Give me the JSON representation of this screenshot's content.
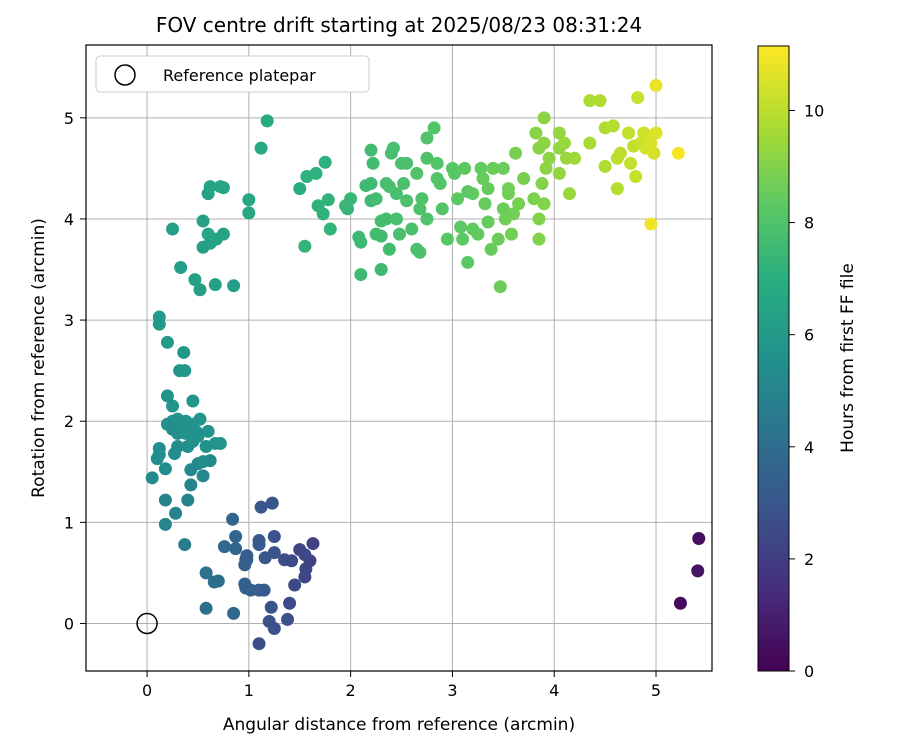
{
  "chart_data": {
    "type": "scatter",
    "title": "FOV centre drift starting at 2025/08/23 08:31:24",
    "xlabel": "Angular distance from reference (arcmin)",
    "ylabel": "Rotation from reference (arcmin)",
    "xlim": [
      -0.6,
      5.55
    ],
    "ylim": [
      -0.47,
      5.72
    ],
    "xticks": [
      0,
      1,
      2,
      3,
      4,
      5
    ],
    "yticks": [
      0,
      1,
      2,
      3,
      4,
      5
    ],
    "grid": true,
    "legend": {
      "placement": "top-left",
      "entries": [
        "Reference platepar"
      ]
    },
    "reference_point": {
      "x": 0,
      "y": 0
    },
    "colorbar": {
      "label": "Hours from first FF file",
      "colormap": "viridis",
      "range": [
        0,
        11.15
      ],
      "ticks": [
        0,
        2,
        4,
        6,
        8,
        10
      ]
    },
    "points": [
      [
        5.24,
        0.2,
        0.3
      ],
      [
        5.42,
        0.84,
        0.4
      ],
      [
        5.41,
        0.52,
        0.6
      ],
      [
        1.2,
        0.02,
        2.7
      ],
      [
        1.22,
        0.16,
        2.8
      ],
      [
        1.1,
        -0.2,
        2.6
      ],
      [
        1.25,
        -0.05,
        2.7
      ],
      [
        1.4,
        0.2,
        2.5
      ],
      [
        1.38,
        0.04,
        2.7
      ],
      [
        1.45,
        0.38,
        2.5
      ],
      [
        1.55,
        0.46,
        2.3
      ],
      [
        1.56,
        0.54,
        2.4
      ],
      [
        1.6,
        0.62,
        2.2
      ],
      [
        1.63,
        0.79,
        2.2
      ],
      [
        1.5,
        0.73,
        2.3
      ],
      [
        1.55,
        0.68,
        2.4
      ],
      [
        1.35,
        0.63,
        2.6
      ],
      [
        1.42,
        0.62,
        2.5
      ],
      [
        1.25,
        0.86,
        2.8
      ],
      [
        1.23,
        1.19,
        2.9
      ],
      [
        1.12,
        1.15,
        3.0
      ],
      [
        1.1,
        0.82,
        3.1
      ],
      [
        1.1,
        0.78,
        3.1
      ],
      [
        1.25,
        0.7,
        2.9
      ],
      [
        1.16,
        0.65,
        3.0
      ],
      [
        0.97,
        0.63,
        3.2
      ],
      [
        0.98,
        0.67,
        3.2
      ],
      [
        0.98,
        0.63,
        3.3
      ],
      [
        0.96,
        0.58,
        3.3
      ],
      [
        1.02,
        0.33,
        3.3
      ],
      [
        1.1,
        0.33,
        3.3
      ],
      [
        1.15,
        0.33,
        3.2
      ],
      [
        0.97,
        0.35,
        3.4
      ],
      [
        0.96,
        0.39,
        3.4
      ],
      [
        0.87,
        0.86,
        3.6
      ],
      [
        0.84,
        1.03,
        3.6
      ],
      [
        0.85,
        0.1,
        3.7
      ],
      [
        0.76,
        0.76,
        3.8
      ],
      [
        0.87,
        0.74,
        3.6
      ],
      [
        0.7,
        0.42,
        4.0
      ],
      [
        0.66,
        0.41,
        4.1
      ],
      [
        0.58,
        0.5,
        4.2
      ],
      [
        0.58,
        0.15,
        4.1
      ],
      [
        0.37,
        0.78,
        4.6
      ],
      [
        0.28,
        1.09,
        4.9
      ],
      [
        0.18,
        0.98,
        5.0
      ],
      [
        0.18,
        1.22,
        5.0
      ],
      [
        0.4,
        1.22,
        4.9
      ],
      [
        0.43,
        1.37,
        5.0
      ],
      [
        0.55,
        1.46,
        5.1
      ],
      [
        0.5,
        1.58,
        5.1
      ],
      [
        0.43,
        1.52,
        5.2
      ],
      [
        0.62,
        1.61,
        5.2
      ],
      [
        0.18,
        1.53,
        5.4
      ],
      [
        0.1,
        1.63,
        5.4
      ],
      [
        0.12,
        1.67,
        5.4
      ],
      [
        0.12,
        1.73,
        5.4
      ],
      [
        0.05,
        1.44,
        5.3
      ],
      [
        0.27,
        1.68,
        5.5
      ],
      [
        0.3,
        1.75,
        5.5
      ],
      [
        0.3,
        1.88,
        5.5
      ],
      [
        0.4,
        1.75,
        5.5
      ],
      [
        0.45,
        1.8,
        5.6
      ],
      [
        0.5,
        1.85,
        5.6
      ],
      [
        0.55,
        1.6,
        5.5
      ],
      [
        0.58,
        1.75,
        5.6
      ],
      [
        0.67,
        1.78,
        5.6
      ],
      [
        0.72,
        1.78,
        5.7
      ],
      [
        0.48,
        1.9,
        5.6
      ],
      [
        0.38,
        1.88,
        5.6
      ],
      [
        0.32,
        1.9,
        5.6
      ],
      [
        0.25,
        1.92,
        5.5
      ],
      [
        0.25,
        2.0,
        5.6
      ],
      [
        0.2,
        1.97,
        5.5
      ],
      [
        0.3,
        2.02,
        5.6
      ],
      [
        0.38,
        2.0,
        5.6
      ],
      [
        0.45,
        1.97,
        5.6
      ],
      [
        0.52,
        2.02,
        5.7
      ],
      [
        0.6,
        1.9,
        5.7
      ],
      [
        0.2,
        2.25,
        5.7
      ],
      [
        0.25,
        2.15,
        5.7
      ],
      [
        0.45,
        2.2,
        5.8
      ],
      [
        0.32,
        2.5,
        5.8
      ],
      [
        0.37,
        2.5,
        5.8
      ],
      [
        0.36,
        2.68,
        5.9
      ],
      [
        0.2,
        2.78,
        6.0
      ],
      [
        0.12,
        2.96,
        6.0
      ],
      [
        0.12,
        3.03,
        6.0
      ],
      [
        0.33,
        3.52,
        6.2
      ],
      [
        0.47,
        3.4,
        6.3
      ],
      [
        0.52,
        3.3,
        6.3
      ],
      [
        0.67,
        3.35,
        6.3
      ],
      [
        0.85,
        3.34,
        6.2
      ],
      [
        0.25,
        3.9,
        6.3
      ],
      [
        0.55,
        3.72,
        6.3
      ],
      [
        0.62,
        3.76,
        6.3
      ],
      [
        0.68,
        3.8,
        6.4
      ],
      [
        0.75,
        3.85,
        6.4
      ],
      [
        0.55,
        3.98,
        6.4
      ],
      [
        0.6,
        3.85,
        6.5
      ],
      [
        0.6,
        4.25,
        6.4
      ],
      [
        0.62,
        4.32,
        6.5
      ],
      [
        0.72,
        4.32,
        6.5
      ],
      [
        0.75,
        4.31,
        6.5
      ],
      [
        1.0,
        4.06,
        6.7
      ],
      [
        1.0,
        4.19,
        6.7
      ],
      [
        1.12,
        4.7,
        6.8
      ],
      [
        1.18,
        4.97,
        6.8
      ],
      [
        1.5,
        4.3,
        7.0
      ],
      [
        1.57,
        4.42,
        7.1
      ],
      [
        1.66,
        4.45,
        7.1
      ],
      [
        1.75,
        4.56,
        7.1
      ],
      [
        1.68,
        4.13,
        7.2
      ],
      [
        1.73,
        4.05,
        7.2
      ],
      [
        1.78,
        4.19,
        7.2
      ],
      [
        1.8,
        3.9,
        7.3
      ],
      [
        1.55,
        3.73,
        7.3
      ],
      [
        1.95,
        4.13,
        7.4
      ],
      [
        1.97,
        4.1,
        7.4
      ],
      [
        2.0,
        4.2,
        7.4
      ],
      [
        2.08,
        3.82,
        7.5
      ],
      [
        2.1,
        3.77,
        7.5
      ],
      [
        2.1,
        3.45,
        7.6
      ],
      [
        2.15,
        4.33,
        7.6
      ],
      [
        2.2,
        4.18,
        7.6
      ],
      [
        2.2,
        4.35,
        7.6
      ],
      [
        2.22,
        4.55,
        7.7
      ],
      [
        2.2,
        4.68,
        7.7
      ],
      [
        2.25,
        4.2,
        7.7
      ],
      [
        2.25,
        3.85,
        7.7
      ],
      [
        2.3,
        3.83,
        7.7
      ],
      [
        2.3,
        3.98,
        7.7
      ],
      [
        2.35,
        4.0,
        7.7
      ],
      [
        2.35,
        4.35,
        7.8
      ],
      [
        2.38,
        4.32,
        7.8
      ],
      [
        2.4,
        4.65,
        7.8
      ],
      [
        2.42,
        4.7,
        7.8
      ],
      [
        2.45,
        4.25,
        7.8
      ],
      [
        2.45,
        4.0,
        7.8
      ],
      [
        2.38,
        3.7,
        7.7
      ],
      [
        2.48,
        3.85,
        7.8
      ],
      [
        2.3,
        3.5,
        7.6
      ],
      [
        2.5,
        4.55,
        7.9
      ],
      [
        2.52,
        4.35,
        7.9
      ],
      [
        2.55,
        4.55,
        7.9
      ],
      [
        2.55,
        4.18,
        7.9
      ],
      [
        2.6,
        3.9,
        7.9
      ],
      [
        2.65,
        3.7,
        7.9
      ],
      [
        2.68,
        3.67,
        7.9
      ],
      [
        2.65,
        4.45,
        8.0
      ],
      [
        2.68,
        4.1,
        8.0
      ],
      [
        2.7,
        4.2,
        8.0
      ],
      [
        2.75,
        4.6,
        8.0
      ],
      [
        2.75,
        4.8,
        8.0
      ],
      [
        2.82,
        4.9,
        8.1
      ],
      [
        2.85,
        4.55,
        8.1
      ],
      [
        2.85,
        4.4,
        8.1
      ],
      [
        2.88,
        4.35,
        8.1
      ],
      [
        2.9,
        4.1,
        8.1
      ],
      [
        2.95,
        3.8,
        8.2
      ],
      [
        2.75,
        4.0,
        8.0
      ],
      [
        3.0,
        4.5,
        8.2
      ],
      [
        3.02,
        4.45,
        8.2
      ],
      [
        3.05,
        4.2,
        8.3
      ],
      [
        3.08,
        3.92,
        8.3
      ],
      [
        3.1,
        3.8,
        8.3
      ],
      [
        3.12,
        4.5,
        8.3
      ],
      [
        3.15,
        4.27,
        8.3
      ],
      [
        3.15,
        3.57,
        8.3
      ],
      [
        3.2,
        3.9,
        8.4
      ],
      [
        3.2,
        4.25,
        8.4
      ],
      [
        3.25,
        3.85,
        8.4
      ],
      [
        3.28,
        4.5,
        8.4
      ],
      [
        3.3,
        4.4,
        8.5
      ],
      [
        3.32,
        4.15,
        8.5
      ],
      [
        3.35,
        4.3,
        8.5
      ],
      [
        3.35,
        3.97,
        8.5
      ],
      [
        3.38,
        3.7,
        8.5
      ],
      [
        3.4,
        4.5,
        8.6
      ],
      [
        3.45,
        3.8,
        8.6
      ],
      [
        3.47,
        3.33,
        8.6
      ],
      [
        3.5,
        4.1,
        8.6
      ],
      [
        3.5,
        4.5,
        8.6
      ],
      [
        3.52,
        4.0,
        8.7
      ],
      [
        3.55,
        4.25,
        8.7
      ],
      [
        3.55,
        4.3,
        8.7
      ],
      [
        3.58,
        3.85,
        8.7
      ],
      [
        3.6,
        4.05,
        8.7
      ],
      [
        3.62,
        4.65,
        8.8
      ],
      [
        3.65,
        4.15,
        8.8
      ],
      [
        3.7,
        4.4,
        8.8
      ],
      [
        3.8,
        4.2,
        8.9
      ],
      [
        3.85,
        3.8,
        9.0
      ],
      [
        3.85,
        4.0,
        9.0
      ],
      [
        3.88,
        4.35,
        9.0
      ],
      [
        3.9,
        4.15,
        9.0
      ],
      [
        3.82,
        4.85,
        9.1
      ],
      [
        3.85,
        4.7,
        9.1
      ],
      [
        3.9,
        5.0,
        9.2
      ],
      [
        3.9,
        4.75,
        9.2
      ],
      [
        3.92,
        4.5,
        9.2
      ],
      [
        3.95,
        4.6,
        9.2
      ],
      [
        4.05,
        4.7,
        9.3
      ],
      [
        4.05,
        4.45,
        9.3
      ],
      [
        4.05,
        4.85,
        9.3
      ],
      [
        4.1,
        4.75,
        9.4
      ],
      [
        4.12,
        4.6,
        9.4
      ],
      [
        4.15,
        4.25,
        9.4
      ],
      [
        4.2,
        4.6,
        9.5
      ],
      [
        4.35,
        4.75,
        9.7
      ],
      [
        4.35,
        5.17,
        9.7
      ],
      [
        4.45,
        5.17,
        9.8
      ],
      [
        4.5,
        4.52,
        9.8
      ],
      [
        4.5,
        4.9,
        9.8
      ],
      [
        4.58,
        4.92,
        9.9
      ],
      [
        4.62,
        4.3,
        9.9
      ],
      [
        4.62,
        4.6,
        10.0
      ],
      [
        4.65,
        4.65,
        10.0
      ],
      [
        4.73,
        4.85,
        10.1
      ],
      [
        4.75,
        4.55,
        10.1
      ],
      [
        4.78,
        4.72,
        10.1
      ],
      [
        4.8,
        4.42,
        10.2
      ],
      [
        4.82,
        5.2,
        10.2
      ],
      [
        4.85,
        4.75,
        10.3
      ],
      [
        4.88,
        4.85,
        10.3
      ],
      [
        4.9,
        4.7,
        10.4
      ],
      [
        4.92,
        4.82,
        10.4
      ],
      [
        4.95,
        4.75,
        10.5
      ],
      [
        4.98,
        4.65,
        10.5
      ],
      [
        5.0,
        4.85,
        10.6
      ],
      [
        5.0,
        5.32,
        10.8
      ],
      [
        4.95,
        3.95,
        10.9
      ],
      [
        5.22,
        4.65,
        11.0
      ]
    ]
  }
}
